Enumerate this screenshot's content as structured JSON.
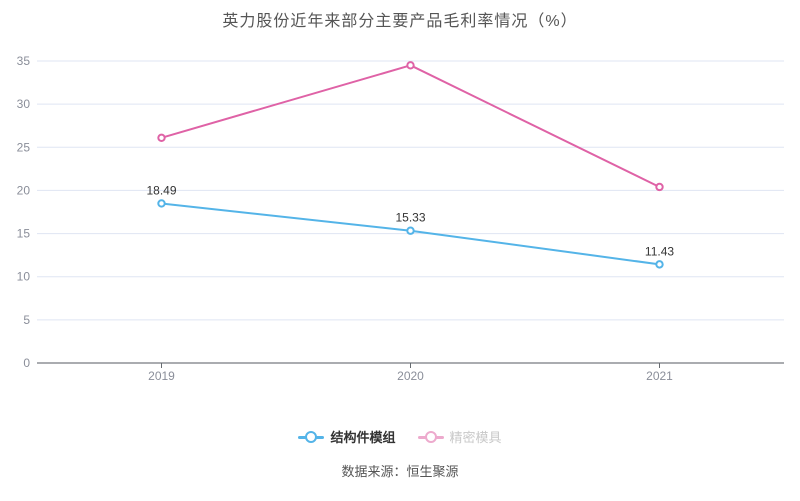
{
  "title": "英力股份近年来部分主要产品毛利率情况（%）",
  "source": "数据来源：恒生聚源",
  "colors": {
    "grid_line": "#dfe5f3",
    "axis_line": "#555a60",
    "axis_tick": "#666b70",
    "axis_label": "#8a8e99",
    "value_label": "#333333",
    "background": "#ffffff",
    "title_text": "#555555",
    "source_text": "#555555"
  },
  "chart_data": {
    "type": "line",
    "categories": [
      "2019",
      "2020",
      "2021"
    ],
    "series": [
      {
        "name": "结构件模组",
        "values": [
          18.49,
          15.33,
          11.43
        ],
        "labels": [
          "18.49",
          "15.33",
          "11.43"
        ],
        "color": "#54b4e8",
        "legend_color": "#54b4e8",
        "legend_text_color": "#333333"
      },
      {
        "name": "精密模具",
        "values": [
          26.1,
          34.5,
          20.4
        ],
        "labels": [],
        "color": "#df62a6",
        "legend_color": "#edaacd",
        "legend_text_color": "#c8c8c8"
      }
    ],
    "ylim": [
      0,
      35
    ],
    "yticks": [
      0,
      5,
      10,
      15,
      20,
      25,
      30,
      35
    ],
    "grid": true,
    "legend_position": "bottom"
  }
}
